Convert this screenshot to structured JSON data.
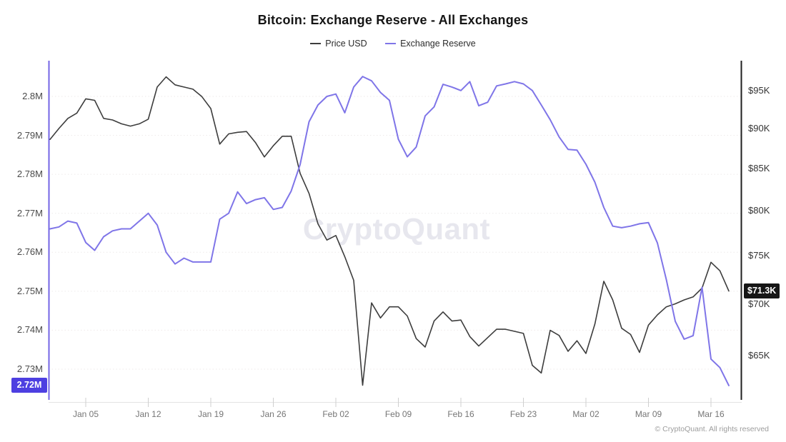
{
  "title": "Bitcoin: Exchange Reserve - All Exchanges",
  "legend": [
    {
      "label": "Price USD",
      "color": "#3d3d3d"
    },
    {
      "label": "Exchange Reserve",
      "color": "#7f75e8"
    }
  ],
  "watermark": "CryptoQuant",
  "footer": "© CryptoQuant. All rights reserved",
  "badges": {
    "reserve_last": "2.72M",
    "price_last": "$71.3K"
  },
  "colors": {
    "price_line": "#3d3d3d",
    "reserve_line": "#7f75e8",
    "left_axis_line": "#7365e5",
    "right_axis_line": "#1f1f1f",
    "reserve_badge_bg": "#4d3fe1",
    "price_badge_bg": "#161616",
    "grid": "#eeeaea",
    "baseline": "#e4e4e4",
    "tick": "#cfcfcf"
  },
  "chart_data": {
    "type": "line",
    "title": "Bitcoin: Exchange Reserve - All Exchanges",
    "legend_position": "top",
    "grid": "horizontal-dotted",
    "x": [
      "Jan 01",
      "Jan 02",
      "Jan 03",
      "Jan 04",
      "Jan 05",
      "Jan 06",
      "Jan 07",
      "Jan 08",
      "Jan 09",
      "Jan 10",
      "Jan 11",
      "Jan 12",
      "Jan 13",
      "Jan 14",
      "Jan 15",
      "Jan 16",
      "Jan 17",
      "Jan 18",
      "Jan 19",
      "Jan 20",
      "Jan 21",
      "Jan 22",
      "Jan 23",
      "Jan 24",
      "Jan 25",
      "Jan 26",
      "Jan 27",
      "Jan 28",
      "Jan 29",
      "Jan 30",
      "Jan 31",
      "Feb 01",
      "Feb 02",
      "Feb 03",
      "Feb 04",
      "Feb 05",
      "Feb 06",
      "Feb 07",
      "Feb 08",
      "Feb 09",
      "Feb 10",
      "Feb 11",
      "Feb 12",
      "Feb 13",
      "Feb 14",
      "Feb 15",
      "Feb 16",
      "Feb 17",
      "Feb 18",
      "Feb 19",
      "Feb 20",
      "Feb 21",
      "Feb 22",
      "Feb 23",
      "Feb 24",
      "Feb 25",
      "Feb 26",
      "Feb 27",
      "Feb 28",
      "Mar 01",
      "Mar 02",
      "Mar 03",
      "Mar 04",
      "Mar 05",
      "Mar 06",
      "Mar 07",
      "Mar 08",
      "Mar 09",
      "Mar 10",
      "Mar 11",
      "Mar 12",
      "Mar 13",
      "Mar 14",
      "Mar 15",
      "Mar 16",
      "Mar 17",
      "Mar 18"
    ],
    "x_ticks": {
      "labels": [
        "Jan 05",
        "Jan 12",
        "Jan 19",
        "Jan 26",
        "Feb 02",
        "Feb 09",
        "Feb 16",
        "Feb 23",
        "Mar 02",
        "Mar 09",
        "Mar 16"
      ],
      "day_indices": [
        4,
        11,
        18,
        25,
        32,
        39,
        46,
        53,
        60,
        67,
        74
      ]
    },
    "left_axis": {
      "name": "Exchange Reserve (BTC)",
      "scale": "linear",
      "tick_labels": [
        "2.8M",
        "2.79M",
        "2.78M",
        "2.77M",
        "2.76M",
        "2.75M",
        "2.74M",
        "2.73M"
      ],
      "tick_values": [
        2.8,
        2.79,
        2.78,
        2.77,
        2.76,
        2.75,
        2.74,
        2.73
      ]
    },
    "right_axis": {
      "name": "Price USD",
      "scale": "log",
      "tick_labels": [
        "$95K",
        "$90K",
        "$85K",
        "$80K",
        "$75K",
        "$70K",
        "$65K"
      ],
      "tick_values": [
        95,
        90,
        85,
        80,
        75,
        70,
        65
      ]
    },
    "series": [
      {
        "name": "Price USD",
        "axis": "right",
        "unit": "USD (thousands)",
        "color": "#3d3d3d",
        "values": [
          88.6,
          90.0,
          91.3,
          92.0,
          93.9,
          93.7,
          91.3,
          91.1,
          90.6,
          90.3,
          90.6,
          91.2,
          95.5,
          96.9,
          95.8,
          95.5,
          95.2,
          94.2,
          92.6,
          88.0,
          89.3,
          89.5,
          89.6,
          88.2,
          86.4,
          87.8,
          89.0,
          89.0,
          84.4,
          82.0,
          78.5,
          76.7,
          77.2,
          74.9,
          72.4,
          62.3,
          70.1,
          68.6,
          69.7,
          69.7,
          68.8,
          66.6,
          65.8,
          68.3,
          69.2,
          68.3,
          68.4,
          66.8,
          65.9,
          66.7,
          67.5,
          67.5,
          67.3,
          67.1,
          64.1,
          63.4,
          67.4,
          66.9,
          65.4,
          66.4,
          65.2,
          68.0,
          72.3,
          70.4,
          67.6,
          67.0,
          65.3,
          67.9,
          68.9,
          69.7,
          70.0,
          70.4,
          70.7,
          71.6,
          74.3,
          73.4,
          71.3
        ]
      },
      {
        "name": "Exchange Reserve",
        "axis": "left",
        "unit": "M BTC",
        "color": "#7f75e8",
        "values": [
          2.766,
          2.7665,
          2.768,
          2.7675,
          2.7625,
          2.7605,
          2.764,
          2.7655,
          2.766,
          2.766,
          2.768,
          2.77,
          2.767,
          2.76,
          2.757,
          2.7585,
          2.7575,
          2.7575,
          2.7575,
          2.7685,
          2.77,
          2.7755,
          2.7725,
          2.7735,
          2.774,
          2.771,
          2.7715,
          2.7757,
          2.7825,
          2.7935,
          2.7978,
          2.8,
          2.8006,
          2.7958,
          2.8024,
          2.8051,
          2.804,
          2.801,
          2.799,
          2.789,
          2.7845,
          2.787,
          2.795,
          2.7973,
          2.8031,
          2.8024,
          2.8015,
          2.8038,
          2.7976,
          2.7985,
          2.8027,
          2.8032,
          2.8038,
          2.8032,
          2.8015,
          2.7978,
          2.794,
          2.7896,
          2.7864,
          2.7862,
          2.7826,
          2.778,
          2.7715,
          2.7667,
          2.7663,
          2.7667,
          2.7673,
          2.7676,
          2.7624,
          2.753,
          2.7423,
          2.7377,
          2.7386,
          2.751,
          2.7326,
          2.7304,
          2.7258
        ]
      }
    ]
  }
}
